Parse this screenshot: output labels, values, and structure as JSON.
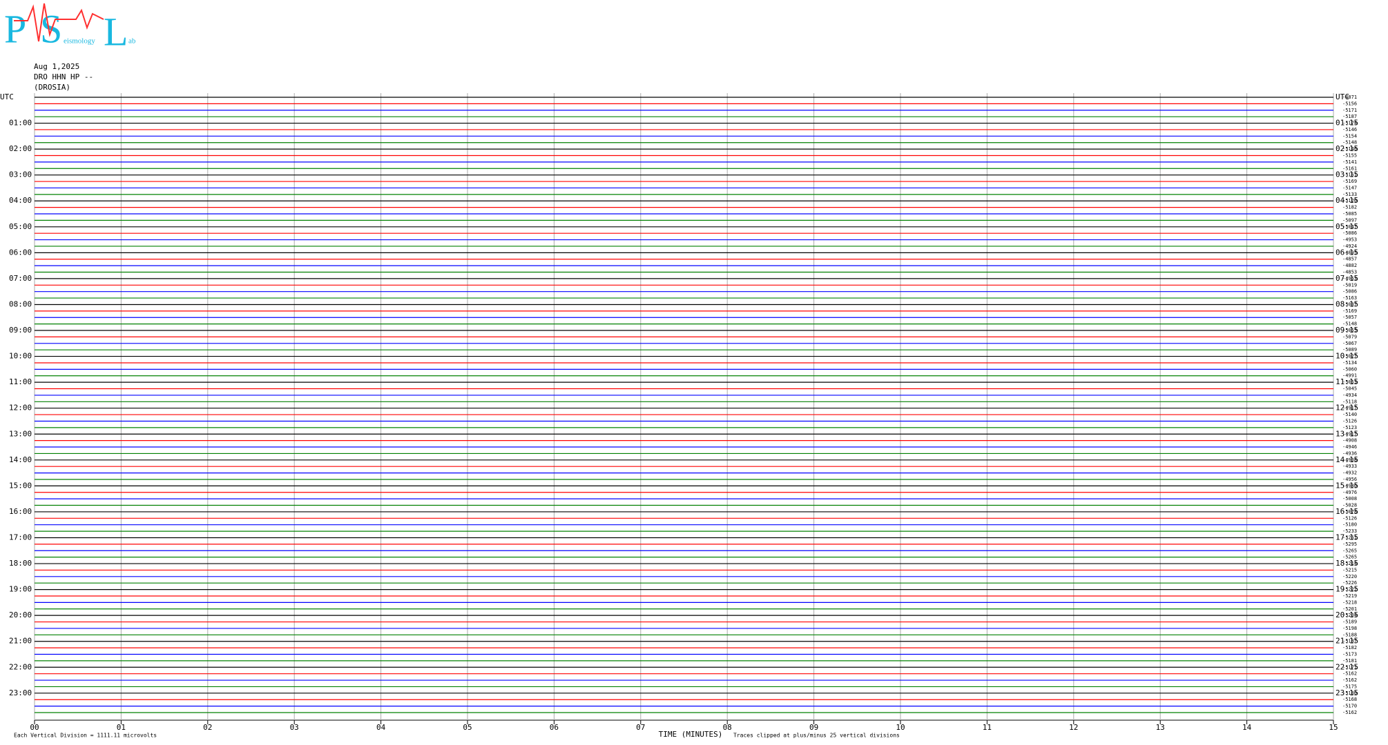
{
  "header": {
    "logo_letters": [
      "P",
      "S",
      "L"
    ],
    "logo_small": [
      "eismology",
      "ab"
    ],
    "date": "Aug 1,2025",
    "station": "DRO HHN HP --",
    "place": "(DROSIA)"
  },
  "chart_data": {
    "type": "helicorder",
    "x_label": "TIME (MINUTES)",
    "note_left": "Each Vertical Division = 1111.11 microvolts",
    "note_right": "Traces clipped at plus/minus 25 vertical divisions",
    "xlim": [
      0,
      15
    ],
    "xticks": [
      {
        "value": 0,
        "label": "00"
      },
      {
        "value": 1,
        "label": "01"
      },
      {
        "value": 2,
        "label": "02"
      },
      {
        "value": 3,
        "label": "03"
      },
      {
        "value": 4,
        "label": "04"
      },
      {
        "value": 5,
        "label": "05"
      },
      {
        "value": 6,
        "label": "06"
      },
      {
        "value": 7,
        "label": "07"
      },
      {
        "value": 8,
        "label": "08"
      },
      {
        "value": 9,
        "label": "09"
      },
      {
        "value": 10,
        "label": "10"
      },
      {
        "value": 11,
        "label": "11"
      },
      {
        "value": 12,
        "label": "12"
      },
      {
        "value": 13,
        "label": "13"
      },
      {
        "value": 14,
        "label": "14"
      },
      {
        "value": 15,
        "label": "15"
      }
    ],
    "grid": true,
    "trace_colors": [
      "#000000",
      "#ff0000",
      "#0000ff",
      "#008000"
    ],
    "left_labels": [
      "UTC",
      "01:00",
      "02:00",
      "03:00",
      "04:00",
      "05:00",
      "06:00",
      "07:00",
      "08:00",
      "09:00",
      "10:00",
      "11:00",
      "12:00",
      "13:00",
      "14:00",
      "15:00",
      "16:00",
      "17:00",
      "18:00",
      "19:00",
      "20:00",
      "21:00",
      "22:00",
      "23:00"
    ],
    "right_labels": [
      "UTC",
      "01:15",
      "02:15",
      "03:15",
      "04:15",
      "05:15",
      "06:15",
      "07:15",
      "08:15",
      "09:15",
      "10:15",
      "11:15",
      "12:15",
      "13:15",
      "14:15",
      "15:15",
      "16:15",
      "17:15",
      "18:15",
      "19:15",
      "20:15",
      "21:15",
      "22:15",
      "23:15"
    ],
    "trace_means": [
      -4871,
      -5156,
      -5171,
      -5187,
      -5174,
      -5146,
      -5154,
      -5148,
      -5146,
      -5155,
      -5141,
      -5161,
      -5151,
      -5169,
      -5147,
      -5133,
      -5120,
      -5182,
      -5085,
      -5097,
      -5047,
      -5086,
      -4953,
      -4924,
      -4895,
      -4857,
      -4882,
      -4853,
      -4953,
      -5019,
      -5086,
      -5163,
      -5087,
      -5169,
      -5057,
      -5148,
      -5055,
      -5079,
      -5067,
      -5089,
      -5027,
      -5134,
      -5060,
      -4991,
      -5053,
      -5045,
      -4934,
      -5118,
      -4917,
      -5140,
      -5126,
      -5123,
      -4917,
      -4908,
      -4946,
      -4936,
      -4908,
      -4933,
      -4932,
      -4956,
      -4980,
      -4976,
      -5008,
      -5028,
      -5078,
      -5126,
      -5180,
      -5233,
      -5261,
      -5295,
      -5265,
      -5265,
      -5214,
      -5215,
      -5220,
      -5226,
      -5222,
      -5219,
      -5218,
      -5201,
      -5204,
      -5189,
      -5198,
      -5188,
      -5187,
      -5182,
      -5173,
      -5181,
      -5171,
      -5162,
      -5162,
      -5175,
      -5180,
      -5168,
      -5170,
      -5162
    ]
  }
}
